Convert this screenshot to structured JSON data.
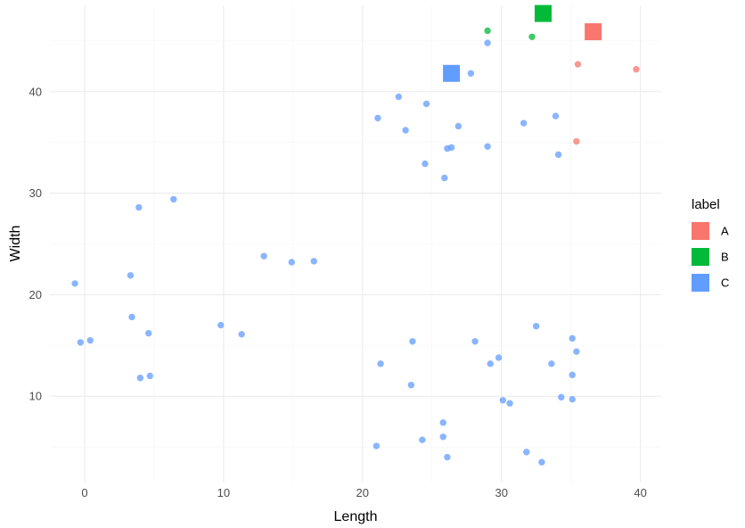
{
  "chart_data": {
    "type": "scatter",
    "xlabel": "Length",
    "ylabel": "Width",
    "xlim": [
      -2.5,
      41.5
    ],
    "ylim": [
      1.5,
      48.5
    ],
    "x_ticks": [
      0,
      10,
      20,
      30,
      40
    ],
    "y_ticks": [
      10,
      20,
      30,
      40
    ],
    "grid": true,
    "legend": {
      "title": "label",
      "position": "right",
      "entries": [
        {
          "name": "A",
          "color": "#F8766D"
        },
        {
          "name": "B",
          "color": "#00BA38"
        },
        {
          "name": "C",
          "color": "#619CFF"
        }
      ]
    },
    "series": [
      {
        "name": "A",
        "color": "#F8766D",
        "x": [
          35.5,
          39.7,
          35.4
        ],
        "y": [
          42.7,
          42.2,
          35.1
        ]
      },
      {
        "name": "B",
        "color": "#00BA38",
        "x": [
          29.0,
          32.2
        ],
        "y": [
          46.0,
          45.4
        ]
      },
      {
        "name": "C",
        "color": "#619CFF",
        "x": [
          29.0,
          27.8,
          22.6,
          24.6,
          21.1,
          23.1,
          26.9,
          31.6,
          33.9,
          26.1,
          26.4,
          29.0,
          34.1,
          24.5,
          25.9,
          3.9,
          6.4,
          12.9,
          14.9,
          16.5,
          3.3,
          -0.7,
          3.4,
          4.6,
          -0.3,
          0.4,
          9.8,
          11.3,
          4.0,
          4.7,
          21.3,
          23.6,
          23.5,
          28.1,
          29.8,
          29.2,
          32.5,
          35.1,
          35.4,
          33.6,
          35.1,
          30.1,
          30.6,
          34.3,
          35.1,
          25.8,
          25.8,
          24.3,
          21.0,
          26.1,
          31.8,
          32.9
        ],
        "y": [
          44.8,
          41.8,
          39.5,
          38.8,
          37.4,
          36.2,
          36.6,
          36.9,
          37.6,
          34.4,
          34.5,
          34.6,
          33.8,
          32.9,
          31.5,
          28.6,
          29.4,
          23.8,
          23.2,
          23.3,
          21.9,
          21.1,
          17.8,
          16.2,
          15.3,
          15.5,
          17.0,
          16.1,
          11.8,
          12.0,
          13.2,
          15.4,
          11.1,
          15.4,
          13.8,
          13.2,
          16.9,
          15.7,
          14.4,
          13.2,
          12.1,
          9.6,
          9.3,
          9.9,
          9.7,
          7.4,
          6.0,
          5.7,
          5.1,
          4.0,
          4.5,
          3.5
        ]
      }
    ],
    "highlighted_points": [
      {
        "label": "A",
        "x": 36.6,
        "y": 45.9,
        "color": "#F8766D"
      },
      {
        "label": "B",
        "x": 33.0,
        "y": 47.7,
        "color": "#00BA38"
      },
      {
        "label": "C",
        "x": 26.4,
        "y": 41.8,
        "color": "#619CFF"
      }
    ]
  }
}
